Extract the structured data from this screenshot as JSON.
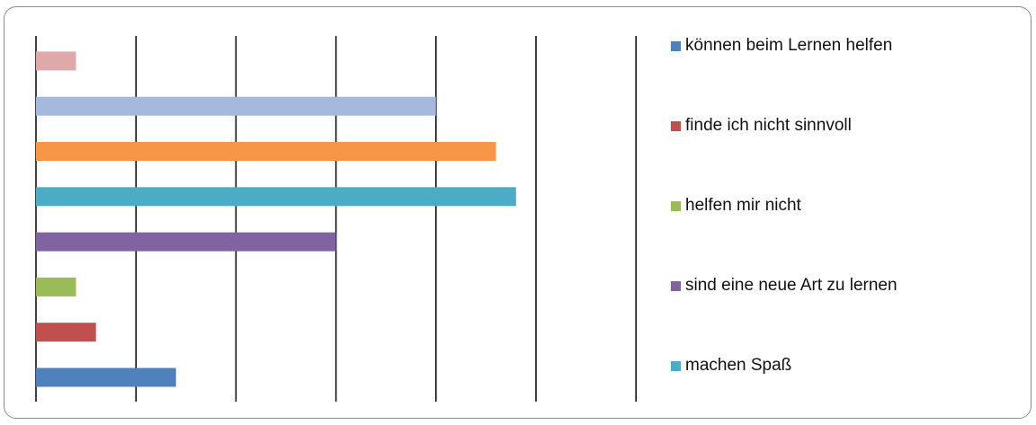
{
  "chart_data": {
    "type": "bar",
    "orientation": "horizontal",
    "grid": true,
    "legend_position": "right",
    "xlim": [
      0,
      6
    ],
    "bars": [
      {
        "name": "können beim Lernen helfen",
        "value": 1.4,
        "color": "#4F81BD"
      },
      {
        "name": "finde ich nicht sinnvoll",
        "value": 0.6,
        "color": "#C0504D"
      },
      {
        "name": "helfen mir nicht",
        "value": 0.4,
        "color": "#9BBB59"
      },
      {
        "name": "sind eine neue Art zu lernen",
        "value": 3.0,
        "color": "#8064A2"
      },
      {
        "name": "machen Spaß",
        "value": 4.8,
        "color": "#4BACC6"
      },
      {
        "name": "",
        "value": 4.6,
        "color": "#F79646"
      },
      {
        "name": "",
        "value": 4.0,
        "color": "#A5B9DC"
      },
      {
        "name": "",
        "value": 0.4,
        "color": "#E0A9A9"
      }
    ],
    "legend": [
      {
        "label": "können beim Lernen helfen",
        "color": "#4F81BD"
      },
      {
        "label": "finde ich nicht sinnvoll",
        "color": "#C0504D"
      },
      {
        "label": "helfen mir nicht",
        "color": "#9BBB59"
      },
      {
        "label": "sind eine neue Art zu lernen",
        "color": "#8064A2"
      },
      {
        "label": "machen Spaß",
        "color": "#4BACC6"
      }
    ]
  }
}
